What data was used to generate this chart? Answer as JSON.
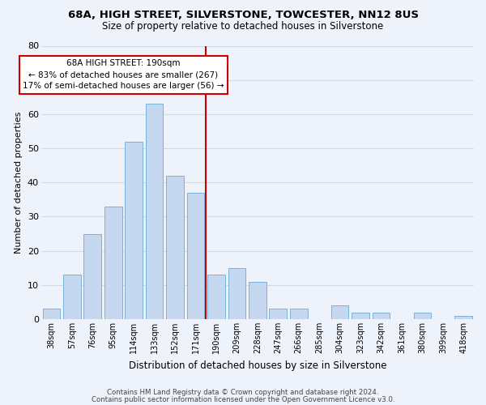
{
  "title1": "68A, HIGH STREET, SILVERSTONE, TOWCESTER, NN12 8US",
  "title2": "Size of property relative to detached houses in Silverstone",
  "xlabel": "Distribution of detached houses by size in Silverstone",
  "ylabel": "Number of detached properties",
  "bar_labels": [
    "38sqm",
    "57sqm",
    "76sqm",
    "95sqm",
    "114sqm",
    "133sqm",
    "152sqm",
    "171sqm",
    "190sqm",
    "209sqm",
    "228sqm",
    "247sqm",
    "266sqm",
    "285sqm",
    "304sqm",
    "323sqm",
    "342sqm",
    "361sqm",
    "380sqm",
    "399sqm",
    "418sqm"
  ],
  "bar_heights": [
    3,
    13,
    25,
    33,
    52,
    63,
    42,
    37,
    13,
    15,
    11,
    3,
    3,
    0,
    4,
    2,
    2,
    0,
    2,
    0,
    1
  ],
  "bar_color": "#c5d8ef",
  "bar_edge_color": "#6aaad4",
  "vline_color": "#cc0000",
  "annotation_title": "68A HIGH STREET: 190sqm",
  "annotation_line1": "← 83% of detached houses are smaller (267)",
  "annotation_line2": "17% of semi-detached houses are larger (56) →",
  "annotation_box_color": "#cc0000",
  "annotation_fill": "#ffffff",
  "ylim": [
    0,
    80
  ],
  "yticks": [
    0,
    10,
    20,
    30,
    40,
    50,
    60,
    70,
    80
  ],
  "footer1": "Contains HM Land Registry data © Crown copyright and database right 2024.",
  "footer2": "Contains public sector information licensed under the Open Government Licence v3.0.",
  "grid_color": "#d0dae8",
  "background_color": "#eef2fa"
}
